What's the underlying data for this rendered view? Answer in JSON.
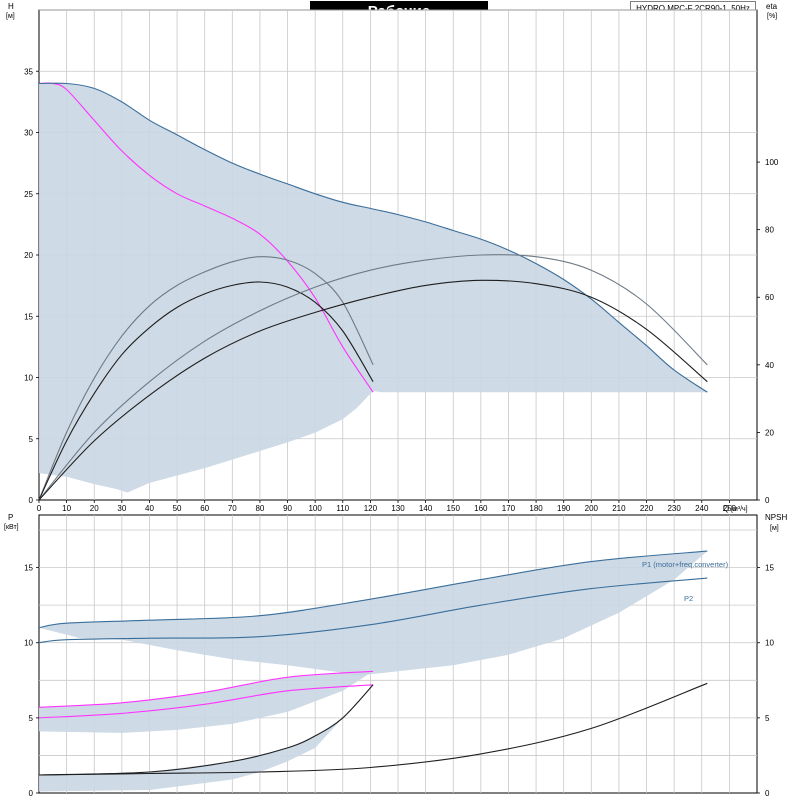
{
  "title": "Рабочие характеристики",
  "model": "HYDRO MPC-F 2CR90-1, 50Hz",
  "colors": {
    "area_fill": "#c9d6e3",
    "curve_blue": "#3a6e9a",
    "curve_dark": "#1e1e1e",
    "curve_gray": "#6e7a86",
    "curve_magenta": "#ff33ff",
    "grid": "#c8c8c8"
  },
  "chart_data": [
    {
      "type": "line",
      "panel": "top",
      "xlabel": "Q",
      "xunit": "[м³/ч]",
      "ylabel_left": "H",
      "yunit_left": "[м]",
      "ylabel_right": "eta",
      "yunit_right": "[%]",
      "xlim": [
        0,
        260
      ],
      "ylim_left": [
        0,
        40
      ],
      "ylim_right": [
        0,
        145
      ],
      "x_ticks": [
        0,
        10,
        20,
        30,
        40,
        50,
        60,
        70,
        80,
        90,
        100,
        110,
        120,
        130,
        140,
        150,
        160,
        170,
        180,
        190,
        200,
        210,
        220,
        230,
        240,
        250
      ],
      "y_left_ticks": [
        0,
        5,
        10,
        15,
        20,
        25,
        30,
        35
      ],
      "y_right_ticks": [
        0,
        20,
        40,
        60,
        80,
        100
      ],
      "grid": true,
      "shaded_region": {
        "upper": [
          [
            0,
            34
          ],
          [
            10,
            34
          ],
          [
            20,
            33.6
          ],
          [
            30,
            32.5
          ],
          [
            40,
            31
          ],
          [
            50,
            29.8
          ],
          [
            60,
            28.6
          ],
          [
            70,
            27.5
          ],
          [
            80,
            26.6
          ],
          [
            90,
            25.8
          ],
          [
            100,
            25
          ],
          [
            110,
            24.3
          ],
          [
            120,
            23.8
          ],
          [
            130,
            23.3
          ],
          [
            140,
            22.7
          ],
          [
            150,
            22
          ],
          [
            160,
            21.3
          ],
          [
            170,
            20.4
          ],
          [
            180,
            19.3
          ],
          [
            190,
            18
          ],
          [
            200,
            16.4
          ],
          [
            210,
            14.5
          ],
          [
            220,
            12.6
          ],
          [
            230,
            10.6
          ],
          [
            242,
            8.8
          ]
        ],
        "lower": [
          [
            242,
            8.8
          ],
          [
            124,
            8.8
          ],
          [
            121,
            8.9
          ],
          [
            115,
            7.5
          ],
          [
            110,
            6.6
          ],
          [
            100,
            5.5
          ],
          [
            90,
            4.7
          ],
          [
            80,
            4
          ],
          [
            70,
            3.3
          ],
          [
            60,
            2.6
          ],
          [
            50,
            2
          ],
          [
            40,
            1.4
          ],
          [
            32,
            0.6
          ],
          [
            28,
            0.9
          ],
          [
            20,
            1.3
          ],
          [
            10,
            1.9
          ],
          [
            0,
            2.2
          ]
        ]
      },
      "series": [
        {
          "name": "",
          "role": "H min speed",
          "axis": "left",
          "color": "curve_magenta",
          "points": [
            [
              0,
              34
            ],
            [
              5,
              34
            ],
            [
              10,
              33.5
            ],
            [
              20,
              31
            ],
            [
              30,
              28.5
            ],
            [
              40,
              26.5
            ],
            [
              50,
              25
            ],
            [
              60,
              24
            ],
            [
              70,
              23
            ],
            [
              80,
              21.7
            ],
            [
              90,
              19.5
            ],
            [
              100,
              16.5
            ],
            [
              110,
              12.5
            ],
            [
              121,
              8.8
            ]
          ]
        },
        {
          "name": "",
          "role": "H max speed",
          "axis": "left",
          "color": "curve_blue",
          "points": [
            [
              0,
              34
            ],
            [
              10,
              34
            ],
            [
              20,
              33.6
            ],
            [
              30,
              32.5
            ],
            [
              40,
              31
            ],
            [
              50,
              29.8
            ],
            [
              60,
              28.6
            ],
            [
              70,
              27.5
            ],
            [
              80,
              26.6
            ],
            [
              90,
              25.8
            ],
            [
              100,
              25
            ],
            [
              110,
              24.3
            ],
            [
              120,
              23.8
            ],
            [
              130,
              23.3
            ],
            [
              140,
              22.7
            ],
            [
              150,
              22
            ],
            [
              160,
              21.3
            ],
            [
              170,
              20.4
            ],
            [
              180,
              19.3
            ],
            [
              190,
              18
            ],
            [
              200,
              16.4
            ],
            [
              210,
              14.5
            ],
            [
              220,
              12.6
            ],
            [
              230,
              10.6
            ],
            [
              242,
              8.8
            ]
          ]
        },
        {
          "name": "",
          "role": "eta small",
          "axis": "right",
          "color": "curve_gray",
          "points": [
            [
              0,
              0
            ],
            [
              10,
              20
            ],
            [
              20,
              36
            ],
            [
              30,
              48.5
            ],
            [
              40,
              57.5
            ],
            [
              50,
              63.5
            ],
            [
              60,
              67.5
            ],
            [
              70,
              70.5
            ],
            [
              80,
              72
            ],
            [
              90,
              71
            ],
            [
              100,
              67
            ],
            [
              110,
              58.5
            ],
            [
              121,
              40
            ]
          ]
        },
        {
          "name": "",
          "role": "eta small (lower)",
          "axis": "right",
          "color": "curve_dark",
          "points": [
            [
              0,
              0
            ],
            [
              10,
              17.5
            ],
            [
              20,
              31.5
            ],
            [
              30,
              43
            ],
            [
              40,
              51
            ],
            [
              50,
              57
            ],
            [
              60,
              61
            ],
            [
              70,
              63.5
            ],
            [
              80,
              64.5
            ],
            [
              90,
              63
            ],
            [
              100,
              58.5
            ],
            [
              110,
              50
            ],
            [
              121,
              35
            ]
          ]
        },
        {
          "name": "",
          "role": "eta large",
          "axis": "right",
          "color": "curve_gray",
          "points": [
            [
              0,
              0
            ],
            [
              20,
              20
            ],
            [
              40,
              35
            ],
            [
              60,
              47
            ],
            [
              80,
              56
            ],
            [
              100,
              63
            ],
            [
              120,
              68
            ],
            [
              140,
              71
            ],
            [
              160,
              72.5
            ],
            [
              180,
              72
            ],
            [
              200,
              68
            ],
            [
              220,
              58
            ],
            [
              242,
              40
            ]
          ]
        },
        {
          "name": "",
          "role": "eta large (lower)",
          "axis": "right",
          "color": "curve_dark",
          "points": [
            [
              0,
              0
            ],
            [
              20,
              17.5
            ],
            [
              40,
              31
            ],
            [
              60,
              42
            ],
            [
              80,
              50
            ],
            [
              100,
              55.5
            ],
            [
              120,
              60
            ],
            [
              140,
              63.5
            ],
            [
              160,
              65
            ],
            [
              180,
              64
            ],
            [
              200,
              60
            ],
            [
              220,
              50.5
            ],
            [
              242,
              35
            ]
          ]
        }
      ]
    },
    {
      "type": "line",
      "panel": "bottom",
      "xlim": [
        0,
        260
      ],
      "ylabel_left": "P",
      "yunit_left": "[кВт]",
      "ylabel_right": "NPSH",
      "yunit_right": "[м]",
      "ylim_left": [
        0,
        18.5
      ],
      "ylim_right": [
        0,
        18.5
      ],
      "y_left_ticks": [
        0,
        5,
        10,
        15
      ],
      "y_right_ticks": [
        0,
        5,
        10,
        15
      ],
      "grid": true,
      "shaded_regions": [
        {
          "upper": [
            [
              0,
              11
            ],
            [
              10,
              11.3
            ],
            [
              40,
              11.5
            ],
            [
              80,
              11.8
            ],
            [
              120,
              12.9
            ],
            [
              160,
              14.2
            ],
            [
              200,
              15.4
            ],
            [
              242,
              16.1
            ]
          ],
          "lower": [
            [
              242,
              16.1
            ],
            [
              230,
              14.2
            ],
            [
              210,
              12
            ],
            [
              190,
              10.3
            ],
            [
              170,
              9.2
            ],
            [
              150,
              8.5
            ],
            [
              130,
              8.1
            ],
            [
              115,
              7.8
            ],
            [
              110,
              8
            ],
            [
              90,
              8.5
            ],
            [
              70,
              8.9
            ],
            [
              50,
              9.5
            ],
            [
              30,
              10.2
            ],
            [
              15,
              10.3
            ],
            [
              0,
              11
            ]
          ]
        },
        {
          "upper": [
            [
              0,
              5.7
            ],
            [
              30,
              6
            ],
            [
              60,
              6.7
            ],
            [
              90,
              7.7
            ],
            [
              121,
              8.1
            ]
          ],
          "lower": [
            [
              121,
              8.1
            ],
            [
              110,
              6.8
            ],
            [
              90,
              5.4
            ],
            [
              70,
              4.6
            ],
            [
              50,
              4.2
            ],
            [
              30,
              4
            ],
            [
              0,
              4.1
            ]
          ]
        },
        {
          "upper": [
            [
              0,
              1.2
            ],
            [
              40,
              1.4
            ],
            [
              70,
              2.1
            ],
            [
              90,
              3
            ],
            [
              100,
              3.8
            ],
            [
              110,
              5
            ],
            [
              121,
              7.2
            ]
          ],
          "lower": [
            [
              121,
              7.2
            ],
            [
              100,
              3
            ],
            [
              90,
              2.1
            ],
            [
              80,
              1.4
            ],
            [
              70,
              0.9
            ],
            [
              40,
              0.2
            ],
            [
              20,
              0.15
            ],
            [
              0,
              0.1
            ]
          ]
        }
      ],
      "series": [
        {
          "name": "P1 (motor+freq.converter)",
          "axis": "left",
          "color": "curve_blue",
          "points": [
            [
              0,
              11
            ],
            [
              10,
              11.3
            ],
            [
              40,
              11.5
            ],
            [
              80,
              11.8
            ],
            [
              120,
              12.9
            ],
            [
              160,
              14.2
            ],
            [
              200,
              15.4
            ],
            [
              242,
              16.1
            ]
          ]
        },
        {
          "name": "P2",
          "axis": "left",
          "color": "curve_blue",
          "points": [
            [
              0,
              10
            ],
            [
              10,
              10.2
            ],
            [
              40,
              10.3
            ],
            [
              80,
              10.4
            ],
            [
              120,
              11.2
            ],
            [
              160,
              12.5
            ],
            [
              200,
              13.6
            ],
            [
              242,
              14.3
            ]
          ]
        },
        {
          "name": "",
          "role": "P1 small",
          "axis": "left",
          "color": "curve_magenta",
          "points": [
            [
              0,
              5.7
            ],
            [
              30,
              6
            ],
            [
              60,
              6.7
            ],
            [
              90,
              7.7
            ],
            [
              121,
              8.1
            ]
          ]
        },
        {
          "name": "",
          "role": "P2 small",
          "axis": "left",
          "color": "curve_magenta",
          "points": [
            [
              0,
              5
            ],
            [
              30,
              5.3
            ],
            [
              60,
              5.9
            ],
            [
              90,
              6.8
            ],
            [
              121,
              7.2
            ]
          ]
        },
        {
          "name": "",
          "role": "NPSH small",
          "axis": "right",
          "color": "curve_dark",
          "points": [
            [
              0,
              1.2
            ],
            [
              40,
              1.4
            ],
            [
              70,
              2.1
            ],
            [
              90,
              3
            ],
            [
              100,
              3.8
            ],
            [
              110,
              5
            ],
            [
              121,
              7.2
            ]
          ]
        },
        {
          "name": "",
          "role": "NPSH large",
          "axis": "right",
          "color": "curve_dark",
          "points": [
            [
              0,
              1.2
            ],
            [
              40,
              1.3
            ],
            [
              80,
              1.4
            ],
            [
              120,
              1.7
            ],
            [
              160,
              2.6
            ],
            [
              200,
              4.3
            ],
            [
              242,
              7.3
            ]
          ]
        }
      ]
    }
  ]
}
